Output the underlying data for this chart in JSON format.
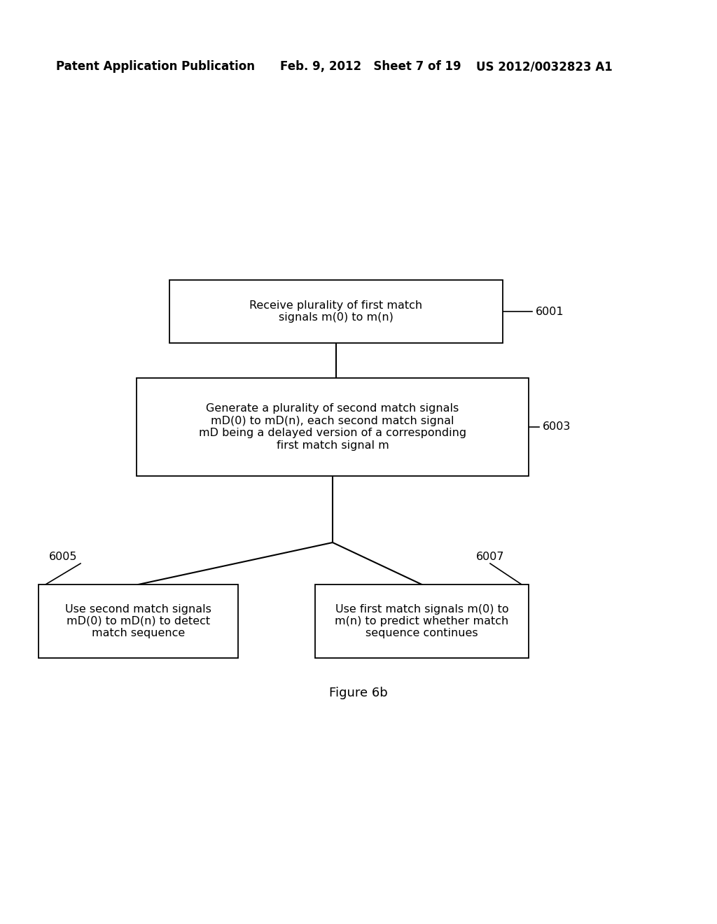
{
  "header_left": "Patent Application Publication",
  "header_mid": "Feb. 9, 2012   Sheet 7 of 19",
  "header_right": "US 2012/0032823 A1",
  "box1_text": "Receive plurality of first match\nsignals m(0) to m(n)",
  "box1_label": "6001",
  "box2_text": "Generate a plurality of second match signals\nmD(0) to mD(n), each second match signal\nmD being a delayed version of a corresponding\nfirst match signal m",
  "box2_label": "6003",
  "box3_text": "Use second match signals\nmD(0) to mD(n) to detect\nmatch sequence",
  "box3_label": "6005",
  "box4_text": "Use first match signals m(0) to\nm(n) to predict whether match\nsequence continues",
  "box4_label": "6007",
  "figure_label": "Figure 6b",
  "bg_color": "#ffffff",
  "line_color": "#000000",
  "text_color": "#000000"
}
